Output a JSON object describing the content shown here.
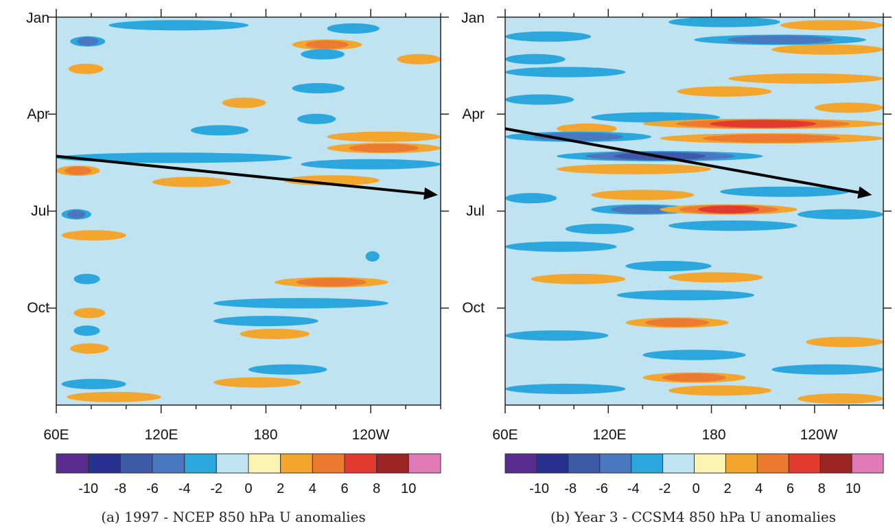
{
  "chart_data": [
    {
      "type": "heatmap",
      "title": "",
      "caption": "(a) 1997 - NCEP 850 hPa U anomalies",
      "xlabel": "",
      "ylabel": "",
      "x_ticks": [
        "60E",
        "120E",
        "180",
        "120W"
      ],
      "y_ticks": [
        "Jan",
        "Apr",
        "Jul",
        "Oct"
      ],
      "xlim": [
        60,
        280
      ],
      "ylim": [
        "Jan",
        "Dec"
      ],
      "colorbar": {
        "levels": [
          -10,
          -8,
          -6,
          -4,
          -2,
          0,
          2,
          4,
          6,
          8,
          10
        ],
        "colors": [
          "#5b2c8f",
          "#28318f",
          "#3c5aa8",
          "#4a78c0",
          "#2ba7dd",
          "#bfe3f1",
          "#fbf4b3",
          "#f3a62e",
          "#ec7a30",
          "#e23a2e",
          "#9c2424",
          "#e07bb8"
        ]
      },
      "arrow": {
        "start": {
          "lon": 60,
          "month": 4.3
        },
        "end": {
          "lon": 280,
          "month": 5.5
        }
      },
      "bands": [
        {
          "month": 0.25,
          "lon0": 90,
          "lon1": 170,
          "value": -3
        },
        {
          "month": 0.35,
          "lon0": 215,
          "lon1": 245,
          "value": -4
        },
        {
          "month": 0.85,
          "lon0": 195,
          "lon1": 235,
          "value": 5
        },
        {
          "month": 0.75,
          "lon0": 68,
          "lon1": 88,
          "value": -6
        },
        {
          "month": 1.3,
          "lon0": 255,
          "lon1": 280,
          "value": 4
        },
        {
          "month": 1.15,
          "lon0": 200,
          "lon1": 225,
          "value": -3
        },
        {
          "month": 1.6,
          "lon0": 67,
          "lon1": 87,
          "value": 3
        },
        {
          "month": 2.2,
          "lon0": 195,
          "lon1": 225,
          "value": -3
        },
        {
          "month": 2.65,
          "lon0": 155,
          "lon1": 180,
          "value": 4
        },
        {
          "month": 3.15,
          "lon0": 198,
          "lon1": 220,
          "value": -4
        },
        {
          "month": 3.5,
          "lon0": 137,
          "lon1": 170,
          "value": -4
        },
        {
          "month": 3.7,
          "lon0": 215,
          "lon1": 280,
          "value": 4
        },
        {
          "month": 4.05,
          "lon0": 215,
          "lon1": 280,
          "value": 5
        },
        {
          "month": 4.35,
          "lon0": 60,
          "lon1": 195,
          "value": -3
        },
        {
          "month": 4.75,
          "lon0": 60,
          "lon1": 85,
          "value": 5
        },
        {
          "month": 4.55,
          "lon0": 200,
          "lon1": 280,
          "value": -3
        },
        {
          "month": 5.1,
          "lon0": 115,
          "lon1": 160,
          "value": 4
        },
        {
          "month": 5.05,
          "lon0": 190,
          "lon1": 245,
          "value": 4
        },
        {
          "month": 6.1,
          "lon0": 63,
          "lon1": 80,
          "value": -6
        },
        {
          "month": 6.75,
          "lon0": 63,
          "lon1": 100,
          "value": 4
        },
        {
          "month": 7.4,
          "lon0": 237,
          "lon1": 245,
          "value": -3
        },
        {
          "month": 8.1,
          "lon0": 70,
          "lon1": 85,
          "value": -4
        },
        {
          "month": 8.2,
          "lon0": 185,
          "lon1": 250,
          "value": 5
        },
        {
          "month": 9.15,
          "lon0": 70,
          "lon1": 88,
          "value": 4
        },
        {
          "month": 8.85,
          "lon0": 150,
          "lon1": 250,
          "value": -4
        },
        {
          "month": 9.4,
          "lon0": 150,
          "lon1": 210,
          "value": -3
        },
        {
          "month": 9.7,
          "lon0": 70,
          "lon1": 85,
          "value": -4
        },
        {
          "month": 9.8,
          "lon0": 165,
          "lon1": 205,
          "value": 4
        },
        {
          "month": 10.25,
          "lon0": 68,
          "lon1": 90,
          "value": 4
        },
        {
          "month": 10.9,
          "lon0": 170,
          "lon1": 215,
          "value": -3
        },
        {
          "month": 11.35,
          "lon0": 63,
          "lon1": 100,
          "value": -4
        },
        {
          "month": 11.3,
          "lon0": 150,
          "lon1": 200,
          "value": 4
        },
        {
          "month": 11.75,
          "lon0": 66,
          "lon1": 120,
          "value": 4
        }
      ]
    },
    {
      "type": "heatmap",
      "title": "",
      "caption": "(b) Year 3 - CCSM4 850 hPa U anomalies",
      "xlabel": "",
      "ylabel": "",
      "x_ticks": [
        "60E",
        "120E",
        "180",
        "120W"
      ],
      "y_ticks": [
        "Jan",
        "Apr",
        "Jul",
        "Oct"
      ],
      "xlim": [
        60,
        280
      ],
      "ylim": [
        "Jan",
        "Dec"
      ],
      "colorbar": {
        "levels": [
          -10,
          -8,
          -6,
          -4,
          -2,
          0,
          2,
          4,
          6,
          8,
          10
        ],
        "colors": [
          "#5b2c8f",
          "#28318f",
          "#3c5aa8",
          "#4a78c0",
          "#2ba7dd",
          "#bfe3f1",
          "#fbf4b3",
          "#f3a62e",
          "#ec7a30",
          "#e23a2e",
          "#9c2424",
          "#e07bb8"
        ]
      },
      "arrow": {
        "start": {
          "lon": 60,
          "month": 3.45
        },
        "end": {
          "lon": 275,
          "month": 5.5
        }
      },
      "bands": [
        {
          "month": 0.15,
          "lon0": 155,
          "lon1": 220,
          "value": -3
        },
        {
          "month": 0.25,
          "lon0": 220,
          "lon1": 280,
          "value": 4
        },
        {
          "month": 0.6,
          "lon0": 60,
          "lon1": 110,
          "value": -4
        },
        {
          "month": 0.7,
          "lon0": 170,
          "lon1": 270,
          "value": -5
        },
        {
          "month": 1.0,
          "lon0": 215,
          "lon1": 280,
          "value": 4
        },
        {
          "month": 1.3,
          "lon0": 60,
          "lon1": 95,
          "value": -4
        },
        {
          "month": 1.7,
          "lon0": 60,
          "lon1": 130,
          "value": -3
        },
        {
          "month": 1.9,
          "lon0": 190,
          "lon1": 280,
          "value": 3
        },
        {
          "month": 2.3,
          "lon0": 160,
          "lon1": 215,
          "value": 4
        },
        {
          "month": 2.55,
          "lon0": 60,
          "lon1": 100,
          "value": -4
        },
        {
          "month": 2.8,
          "lon0": 240,
          "lon1": 280,
          "value": 3
        },
        {
          "month": 3.1,
          "lon0": 110,
          "lon1": 185,
          "value": -3
        },
        {
          "month": 3.45,
          "lon0": 90,
          "lon1": 125,
          "value": 4
        },
        {
          "month": 3.3,
          "lon0": 140,
          "lon1": 280,
          "value": 7
        },
        {
          "month": 3.7,
          "lon0": 60,
          "lon1": 145,
          "value": -6
        },
        {
          "month": 3.75,
          "lon0": 150,
          "lon1": 280,
          "value": 6
        },
        {
          "month": 4.3,
          "lon0": 90,
          "lon1": 210,
          "value": -7
        },
        {
          "month": 4.7,
          "lon0": 90,
          "lon1": 180,
          "value": 3
        },
        {
          "month": 5.4,
          "lon0": 185,
          "lon1": 260,
          "value": -3
        },
        {
          "month": 5.6,
          "lon0": 60,
          "lon1": 90,
          "value": -3
        },
        {
          "month": 5.5,
          "lon0": 110,
          "lon1": 170,
          "value": 4
        },
        {
          "month": 5.95,
          "lon0": 110,
          "lon1": 170,
          "value": -5
        },
        {
          "month": 5.95,
          "lon0": 150,
          "lon1": 230,
          "value": 8
        },
        {
          "month": 6.1,
          "lon0": 230,
          "lon1": 280,
          "value": -3
        },
        {
          "month": 6.55,
          "lon0": 95,
          "lon1": 135,
          "value": -4
        },
        {
          "month": 6.45,
          "lon0": 155,
          "lon1": 230,
          "value": -4
        },
        {
          "month": 7.1,
          "lon0": 60,
          "lon1": 125,
          "value": -3
        },
        {
          "month": 7.7,
          "lon0": 130,
          "lon1": 180,
          "value": -3
        },
        {
          "month": 8.1,
          "lon0": 75,
          "lon1": 130,
          "value": 4
        },
        {
          "month": 8.05,
          "lon0": 155,
          "lon1": 210,
          "value": 4
        },
        {
          "month": 8.6,
          "lon0": 125,
          "lon1": 205,
          "value": -4
        },
        {
          "month": 9.45,
          "lon0": 130,
          "lon1": 190,
          "value": 6
        },
        {
          "month": 9.85,
          "lon0": 60,
          "lon1": 120,
          "value": -3
        },
        {
          "month": 10.05,
          "lon0": 235,
          "lon1": 280,
          "value": 4
        },
        {
          "month": 10.45,
          "lon0": 140,
          "lon1": 200,
          "value": -3
        },
        {
          "month": 10.9,
          "lon0": 215,
          "lon1": 280,
          "value": -3
        },
        {
          "month": 11.15,
          "lon0": 140,
          "lon1": 200,
          "value": 6
        },
        {
          "month": 11.5,
          "lon0": 60,
          "lon1": 130,
          "value": -3
        },
        {
          "month": 11.55,
          "lon0": 155,
          "lon1": 215,
          "value": 4
        },
        {
          "month": 11.8,
          "lon0": 230,
          "lon1": 280,
          "value": 3
        }
      ]
    }
  ]
}
